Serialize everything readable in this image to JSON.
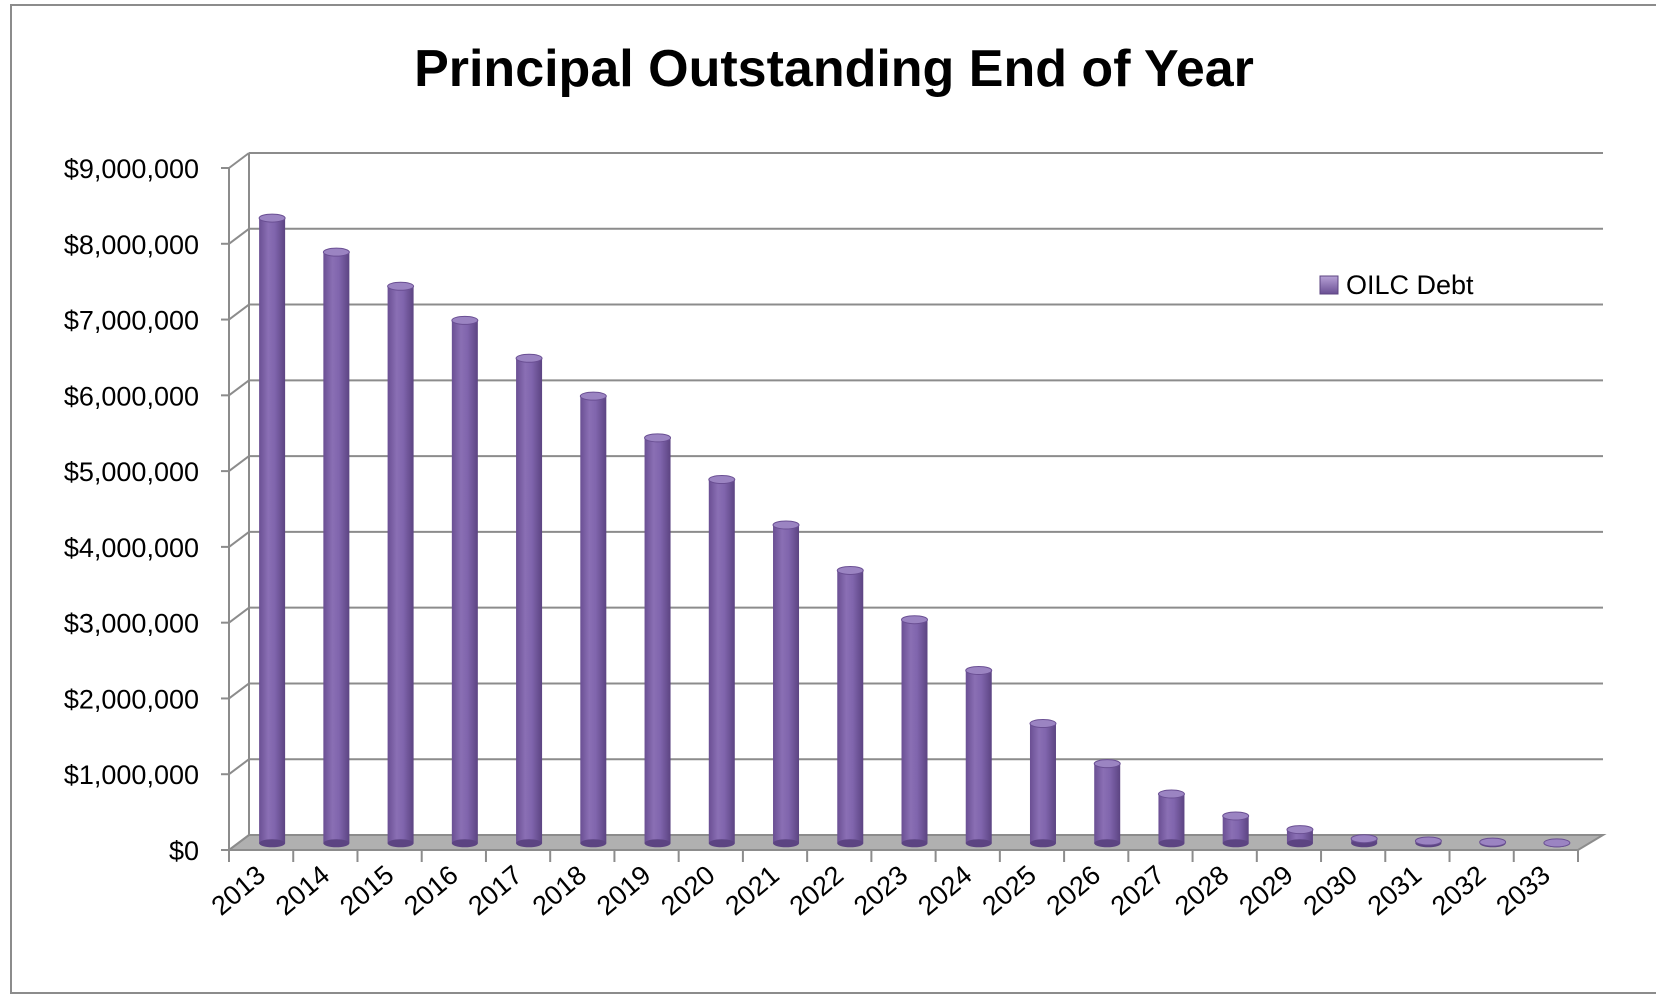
{
  "chart_data": {
    "type": "bar",
    "title": "Principal Outstanding End of Year",
    "xlabel": "",
    "ylabel": "",
    "ylim": [
      0,
      9000000
    ],
    "y_ticks": [
      0,
      1000000,
      2000000,
      3000000,
      4000000,
      5000000,
      6000000,
      7000000,
      8000000,
      9000000
    ],
    "y_tick_labels": [
      "$0",
      "$1,000,000",
      "$2,000,000",
      "$3,000,000",
      "$4,000,000",
      "$5,000,000",
      "$6,000,000",
      "$7,000,000",
      "$8,000,000",
      "$9,000,000"
    ],
    "categories": [
      "2013",
      "2014",
      "2015",
      "2016",
      "2017",
      "2018",
      "2019",
      "2020",
      "2021",
      "2022",
      "2023",
      "2024",
      "2025",
      "2026",
      "2027",
      "2028",
      "2029",
      "2030",
      "2031",
      "2032",
      "2033"
    ],
    "series": [
      {
        "name": "OILC Debt",
        "color": "#7f63a8",
        "values": [
          8250000,
          7800000,
          7350000,
          6900000,
          6400000,
          5900000,
          5350000,
          4800000,
          4200000,
          3600000,
          2950000,
          2280000,
          1580000,
          1050000,
          650000,
          360000,
          180000,
          60000,
          30000,
          15000,
          5000
        ]
      }
    ],
    "grid": true,
    "legend_position": "top-right",
    "style": "3d-cylinder"
  }
}
